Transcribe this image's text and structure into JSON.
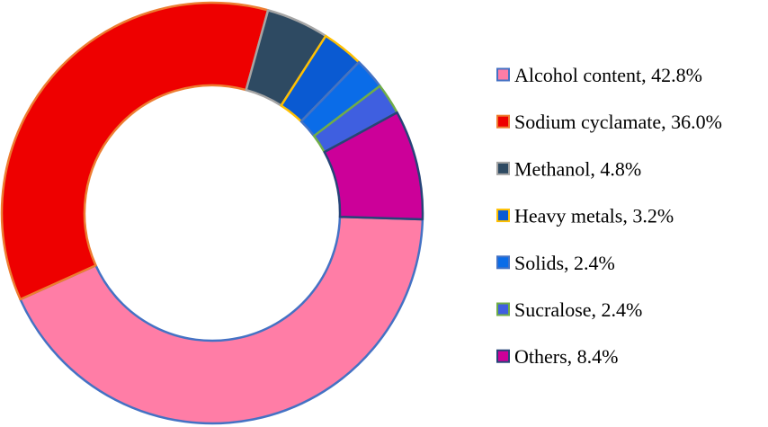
{
  "chart_data": {
    "type": "pie",
    "variant": "donut",
    "title": "",
    "legend_position": "right",
    "series": [
      {
        "name": "",
        "slices": [
          {
            "label": "Alcohol content, 42.8%",
            "value": 42.8,
            "color": "#FF7DA6",
            "border": "#4472C4"
          },
          {
            "label": "Sodium cyclamate, 36.0%",
            "value": 36.0,
            "color": "#EE0000",
            "border": "#ED7D31"
          },
          {
            "label": "Methanol, 4.8%",
            "value": 4.8,
            "color": "#2E4A62",
            "border": "#A5A5A5"
          },
          {
            "label": "Heavy metals, 3.2%",
            "value": 3.2,
            "color": "#0A5AD2",
            "border": "#FFC000"
          },
          {
            "label": "Solids, 2.4%",
            "value": 2.4,
            "color": "#0A6CE8",
            "border": "#4472C4"
          },
          {
            "label": "Sucralose, 2.4%",
            "value": 2.4,
            "color": "#3F5FE0",
            "border": "#70AD47"
          },
          {
            "label": "Others, 8.4%",
            "value": 8.4,
            "color": "#CC0099",
            "border": "#264478"
          }
        ]
      }
    ]
  }
}
